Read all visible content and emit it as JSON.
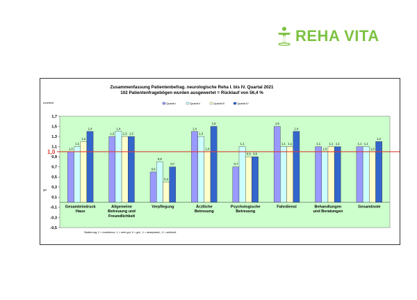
{
  "brand": {
    "name": "REHA VITA",
    "logo_icon": "person-leaf-icon",
    "color": "#7dc242"
  },
  "chart_data": {
    "type": "bar",
    "title": "Zusammenfassung Patientenbefrag. neurologische Reha I. bis IV. Quartal 2021",
    "subtitle": "102 Patientenfragebögen wurden ausgewertet = Rücklauf von 56,4 %",
    "top_left_label": "exzellent",
    "bottom_left_label": "gut",
    "scale_note": "Skalierung: 2 = exzellence, 1 = sehr gut, 0 = gut, -1 = akzeptabel, -2 = schlecht",
    "categories": [
      [
        "Gesamteindruck",
        "Haus"
      ],
      [
        "Allgemeine",
        "Betreuung  und",
        "Freundlichkeit"
      ],
      [
        "Verpflegung"
      ],
      [
        "Ärztliche",
        "Betreuung"
      ],
      [
        "Psychologische",
        "Betreuung"
      ],
      [
        "Fahrdienst"
      ],
      [
        "Behandlungen",
        "und Beratungen"
      ],
      [
        "Gesamtnote"
      ]
    ],
    "series": [
      {
        "name": "Quartal I",
        "color": "#9999ff",
        "values": [
          1.0,
          1.3,
          0.6,
          1.4,
          0.7,
          1.5,
          1.1,
          1.1
        ]
      },
      {
        "name": "Quartal II",
        "color": "#ccffff",
        "values": [
          1.1,
          1.4,
          0.8,
          1.3,
          1.1,
          1.1,
          1.0,
          1.1
        ]
      },
      {
        "name": "Quartal III",
        "color": "#ffffcc",
        "values": [
          1.2,
          1.3,
          0.4,
          1.0,
          0.9,
          1.1,
          1.1,
          1.0
        ]
      },
      {
        "name": "Quartal IV",
        "color": "#3366cc",
        "values": [
          1.4,
          1.3,
          0.7,
          1.5,
          0.9,
          1.4,
          1.1,
          1.2
        ]
      }
    ],
    "data_labels": [
      [
        "1,0",
        "1,3",
        "0,6",
        "1,4",
        "0,7",
        "1,5",
        "1,1",
        "1,1"
      ],
      [
        "1,1",
        "1,4",
        "0,8",
        "1,3",
        "1,1",
        "1,1",
        "1,0",
        "1,1"
      ],
      [
        "1,2",
        "1,3",
        "0,4",
        "1,0",
        "0,9",
        "1,1",
        "1,1",
        "1,0"
      ],
      [
        "1,4",
        "1,3",
        "0,7",
        "1,5",
        "0,9",
        "1,4",
        "1,1",
        "1,2"
      ]
    ],
    "y_ticks": [
      "1,7",
      "1,5",
      "1,3",
      "1,1",
      "0,9",
      "0,7",
      "0,5",
      "0,3",
      "0,1",
      "-0,1",
      "-0,3",
      "-0,5"
    ],
    "ylim": [
      -0.5,
      1.7
    ],
    "reference_line": {
      "value": 1.0,
      "label": "1,0",
      "color": "#e03c31"
    },
    "plot_background": "#ccffcc",
    "legend_position": "top"
  }
}
